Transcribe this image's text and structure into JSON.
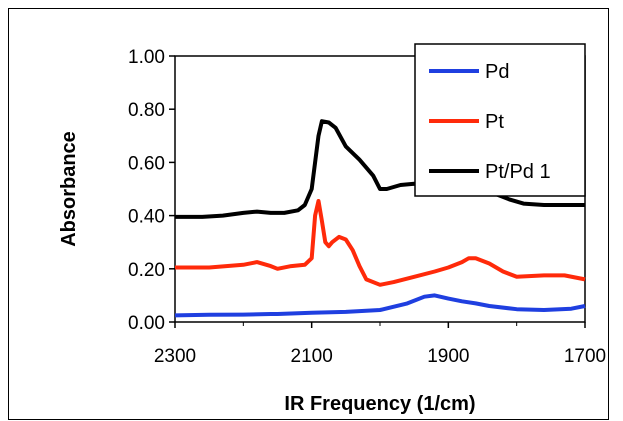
{
  "chart_data": {
    "type": "line",
    "title": "",
    "xlabel": "IR Frequency (1/cm)",
    "ylabel": "Absorbance",
    "xlim": [
      2300,
      1700
    ],
    "ylim": [
      0,
      1
    ],
    "x_reversed": true,
    "x_ticks": [
      "2300",
      "2100",
      "1900",
      "1700"
    ],
    "y_ticks": [
      "0.00",
      "0.20",
      "0.40",
      "0.60",
      "0.80",
      "1.00"
    ],
    "grid": false,
    "legend_position": "top-right",
    "series": [
      {
        "name": "Pd",
        "color": "#1f3fe0",
        "points": [
          [
            2300,
            0.025
          ],
          [
            2250,
            0.027
          ],
          [
            2200,
            0.028
          ],
          [
            2160,
            0.03
          ],
          [
            2150,
            0.03
          ],
          [
            2100,
            0.035
          ],
          [
            2050,
            0.038
          ],
          [
            2000,
            0.045
          ],
          [
            1960,
            0.07
          ],
          [
            1935,
            0.095
          ],
          [
            1920,
            0.1
          ],
          [
            1900,
            0.088
          ],
          [
            1880,
            0.078
          ],
          [
            1860,
            0.07
          ],
          [
            1840,
            0.06
          ],
          [
            1800,
            0.048
          ],
          [
            1760,
            0.045
          ],
          [
            1720,
            0.05
          ],
          [
            1700,
            0.06
          ]
        ]
      },
      {
        "name": "Pt",
        "color": "#ff2a0a",
        "points": [
          [
            2300,
            0.205
          ],
          [
            2250,
            0.205
          ],
          [
            2200,
            0.215
          ],
          [
            2180,
            0.225
          ],
          [
            2160,
            0.21
          ],
          [
            2150,
            0.2
          ],
          [
            2130,
            0.21
          ],
          [
            2110,
            0.215
          ],
          [
            2100,
            0.24
          ],
          [
            2095,
            0.4
          ],
          [
            2090,
            0.455
          ],
          [
            2085,
            0.38
          ],
          [
            2080,
            0.3
          ],
          [
            2075,
            0.285
          ],
          [
            2070,
            0.3
          ],
          [
            2060,
            0.32
          ],
          [
            2050,
            0.31
          ],
          [
            2040,
            0.27
          ],
          [
            2030,
            0.21
          ],
          [
            2020,
            0.16
          ],
          [
            2000,
            0.14
          ],
          [
            1980,
            0.15
          ],
          [
            1950,
            0.17
          ],
          [
            1920,
            0.19
          ],
          [
            1900,
            0.205
          ],
          [
            1880,
            0.225
          ],
          [
            1870,
            0.24
          ],
          [
            1860,
            0.24
          ],
          [
            1840,
            0.22
          ],
          [
            1820,
            0.19
          ],
          [
            1800,
            0.17
          ],
          [
            1760,
            0.175
          ],
          [
            1730,
            0.175
          ],
          [
            1700,
            0.16
          ]
        ]
      },
      {
        "name": "Pt/Pd 1",
        "color": "#000000",
        "points": [
          [
            2300,
            0.395
          ],
          [
            2260,
            0.395
          ],
          [
            2230,
            0.4
          ],
          [
            2200,
            0.41
          ],
          [
            2180,
            0.415
          ],
          [
            2160,
            0.41
          ],
          [
            2140,
            0.41
          ],
          [
            2120,
            0.42
          ],
          [
            2110,
            0.44
          ],
          [
            2100,
            0.5
          ],
          [
            2090,
            0.7
          ],
          [
            2085,
            0.755
          ],
          [
            2075,
            0.75
          ],
          [
            2065,
            0.73
          ],
          [
            2050,
            0.66
          ],
          [
            2030,
            0.61
          ],
          [
            2010,
            0.55
          ],
          [
            2000,
            0.5
          ],
          [
            1990,
            0.5
          ],
          [
            1970,
            0.515
          ],
          [
            1950,
            0.52
          ],
          [
            1930,
            0.515
          ],
          [
            1910,
            0.52
          ],
          [
            1890,
            0.52
          ],
          [
            1870,
            0.515
          ],
          [
            1850,
            0.5
          ],
          [
            1830,
            0.48
          ],
          [
            1810,
            0.46
          ],
          [
            1790,
            0.445
          ],
          [
            1760,
            0.44
          ],
          [
            1730,
            0.44
          ],
          [
            1700,
            0.44
          ]
        ]
      }
    ]
  }
}
